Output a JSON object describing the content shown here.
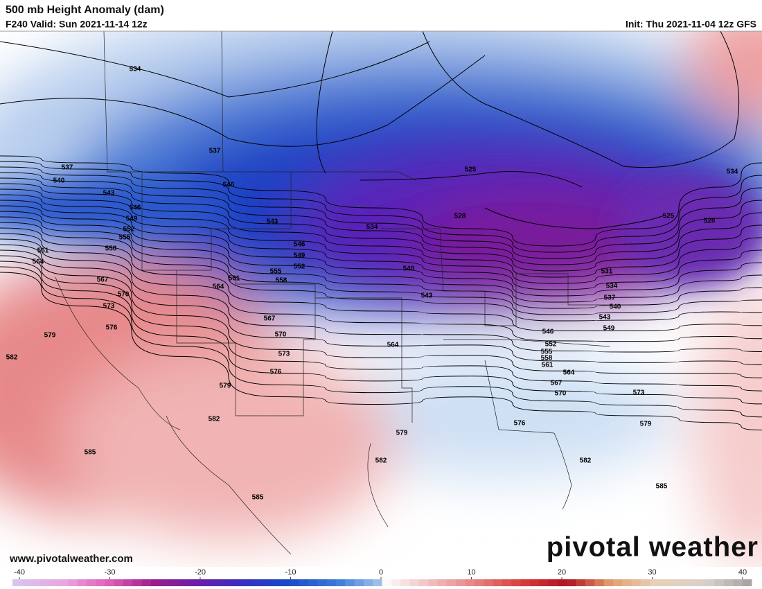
{
  "header": {
    "title": "500 mb Height Anomaly (dam)",
    "valid": "F240 Valid: Sun 2021-11-14 12z",
    "init": "Init: Thu 2021-11-04 12z GFS"
  },
  "map": {
    "contour_labels": [
      "534",
      "537",
      "537",
      "540",
      "543",
      "540",
      "546",
      "549",
      "552",
      "555",
      "558",
      "561",
      "564",
      "567",
      "570",
      "573",
      "576",
      "579",
      "582",
      "543",
      "546",
      "549",
      "552",
      "555",
      "558",
      "561",
      "564",
      "567",
      "570",
      "573",
      "576",
      "579",
      "582",
      "585",
      "585",
      "534",
      "540",
      "543",
      "525",
      "528",
      "525",
      "528",
      "534",
      "531",
      "534",
      "537",
      "540",
      "543",
      "549",
      "546",
      "552",
      "555",
      "558",
      "561",
      "564",
      "567",
      "570",
      "573",
      "576",
      "579",
      "579",
      "582",
      "582",
      "585",
      "564"
    ]
  },
  "footer": {
    "website": "www.pivotalweather.com",
    "logo": "pivotal weather"
  },
  "colorbar": {
    "ticks": [
      -40,
      -30,
      -20,
      -10,
      0,
      10,
      20,
      30,
      40
    ]
  }
}
